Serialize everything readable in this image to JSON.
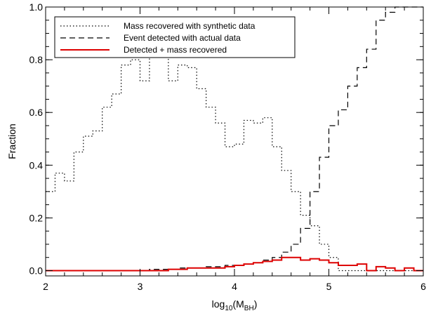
{
  "chart_data": {
    "type": "line",
    "step": true,
    "title": "",
    "xlabel": "log10(MBH)",
    "xlabel_parts": {
      "base": "log",
      "sub": "10",
      "open": "(M",
      "sub2": "BH",
      "close": ")"
    },
    "ylabel": "Fraction",
    "xlim": [
      2,
      6
    ],
    "ylim": [
      0,
      1
    ],
    "xticks": [
      "2",
      "3",
      "4",
      "5",
      "6"
    ],
    "yticks": [
      "0.0",
      "0.2",
      "0.4",
      "0.6",
      "0.8",
      "1.0"
    ],
    "grid": false,
    "legend_position": "top-left",
    "bin_edges": [
      2.0,
      2.1,
      2.2,
      2.3,
      2.4,
      2.5,
      2.6,
      2.7,
      2.8,
      2.9,
      3.0,
      3.1,
      3.2,
      3.3,
      3.4,
      3.5,
      3.6,
      3.7,
      3.8,
      3.9,
      4.0,
      4.1,
      4.2,
      4.3,
      4.4,
      4.5,
      4.6,
      4.7,
      4.8,
      4.9,
      5.0,
      5.1,
      5.2,
      5.3,
      5.4,
      5.5,
      5.6,
      5.7,
      5.8,
      5.9,
      6.0
    ],
    "series": [
      {
        "name": "Mass recovered with synthetic data",
        "style": "dotted",
        "color": "#000000",
        "values": [
          0.3,
          0.37,
          0.34,
          0.45,
          0.51,
          0.53,
          0.62,
          0.67,
          0.78,
          0.8,
          0.72,
          0.81,
          0.82,
          0.72,
          0.78,
          0.77,
          0.69,
          0.62,
          0.56,
          0.47,
          0.48,
          0.57,
          0.56,
          0.58,
          0.47,
          0.38,
          0.3,
          0.21,
          0.17,
          0.1,
          0.05,
          0.0,
          0.0,
          0.0,
          0.0,
          0.0,
          0.0,
          0.0,
          0.0,
          0.0
        ]
      },
      {
        "name": "Event detected with actual data",
        "style": "dashed",
        "color": "#000000",
        "values": [
          0.0,
          0.0,
          0.0,
          0.0,
          0.0,
          0.0,
          0.0,
          0.0,
          0.0,
          0.0,
          0.0,
          0.005,
          0.005,
          0.005,
          0.01,
          0.01,
          0.01,
          0.015,
          0.015,
          0.02,
          0.02,
          0.025,
          0.03,
          0.04,
          0.05,
          0.07,
          0.1,
          0.16,
          0.3,
          0.43,
          0.55,
          0.61,
          0.7,
          0.77,
          0.84,
          0.95,
          0.98,
          1.0,
          1.0,
          1.0
        ]
      },
      {
        "name": "Detected + mass recovered",
        "style": "solid",
        "color": "#dd0000",
        "values": [
          0.0,
          0.0,
          0.0,
          0.0,
          0.0,
          0.0,
          0.0,
          0.0,
          0.0,
          0.0,
          0.0,
          0.0,
          0.0,
          0.005,
          0.005,
          0.01,
          0.01,
          0.01,
          0.01,
          0.015,
          0.02,
          0.025,
          0.03,
          0.035,
          0.04,
          0.05,
          0.05,
          0.04,
          0.045,
          0.04,
          0.03,
          0.02,
          0.02,
          0.025,
          0.0,
          0.015,
          0.01,
          0.0,
          0.01,
          0.0
        ]
      }
    ]
  }
}
